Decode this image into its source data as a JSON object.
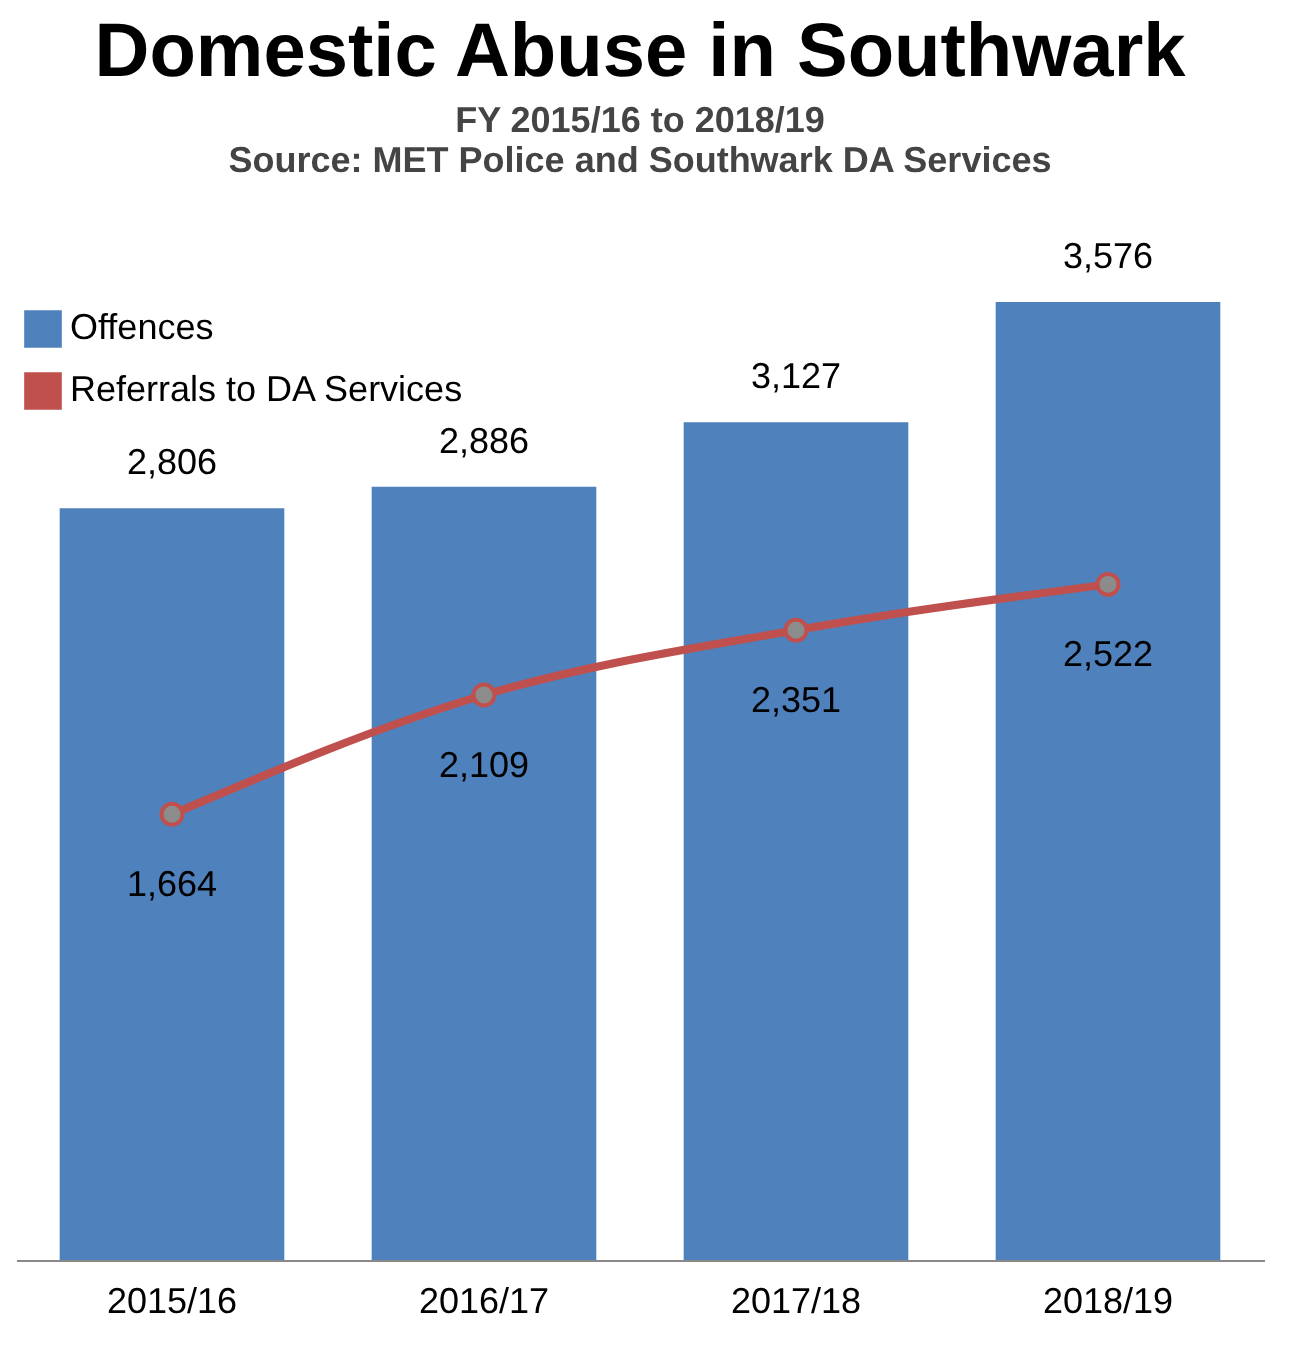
{
  "chart_data": {
    "type": "bar",
    "title": "Domestic Abuse in Southwark",
    "subtitle": "FY 2015/16 to 2018/19",
    "annotations": [
      "Source: MET Police and Southwark DA Services"
    ],
    "categories": [
      "2015/16",
      "2016/17",
      "2017/18",
      "2018/19"
    ],
    "series": [
      {
        "name": "Offences",
        "color": "#4f81bd",
        "values": [
          2806,
          2886,
          3127,
          3576
        ],
        "value_labels": [
          "2,806",
          "2,886",
          "3,127",
          "3,576"
        ]
      },
      {
        "name": "Referrals to DA Services",
        "type": "line",
        "color": "#c0504d",
        "values": [
          1664,
          2109,
          2351,
          2522
        ],
        "value_labels": [
          "1,664",
          "2,109",
          "2,351",
          "2,522"
        ]
      }
    ],
    "legend": "top left",
    "marker": "circle"
  }
}
